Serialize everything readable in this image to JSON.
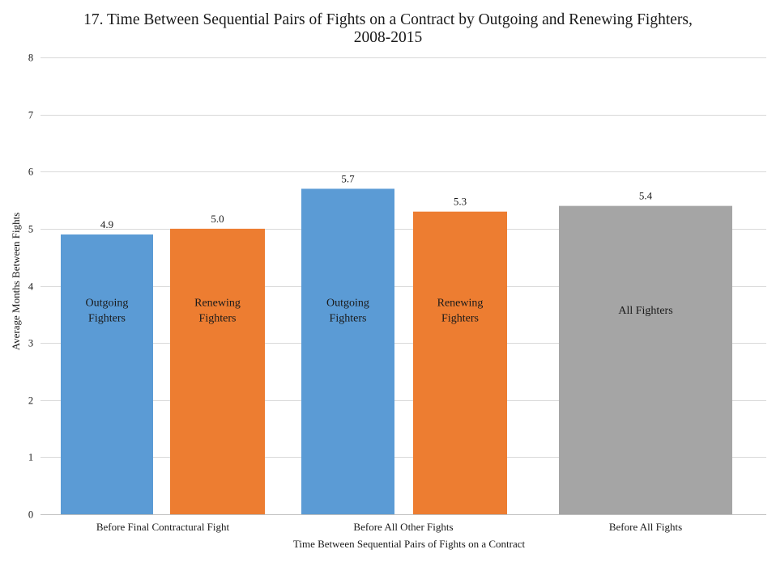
{
  "chart_data": {
    "type": "bar",
    "title_lines": [
      "17. Time Between Sequential Pairs of Fights on a Contract by Outgoing and Renewing Fighters,",
      "2008-2015"
    ],
    "xlabel": "Time Between Sequential Pairs of Fights on a Contract",
    "ylabel": "Average Months Between Fights",
    "ylim": [
      0,
      8
    ],
    "yticks": [
      "0",
      "1",
      "2",
      "3",
      "4",
      "5",
      "6",
      "7",
      "8"
    ],
    "grid": true,
    "legend": "none",
    "groups": [
      {
        "category": "Before Final Contractural Fight",
        "bars": [
          {
            "label_lines": [
              "Outgoing",
              "Fighters"
            ],
            "value": 4.9,
            "value_label": "4.9",
            "color": "#5b9bd5"
          },
          {
            "label_lines": [
              "Renewing",
              "Fighters"
            ],
            "value": 5.0,
            "value_label": "5.0",
            "color": "#ed7d31"
          }
        ]
      },
      {
        "category": "Before All Other Fights",
        "bars": [
          {
            "label_lines": [
              "Outgoing",
              "Fighters"
            ],
            "value": 5.7,
            "value_label": "5.7",
            "color": "#5b9bd5"
          },
          {
            "label_lines": [
              "Renewing",
              "Fighters"
            ],
            "value": 5.3,
            "value_label": "5.3",
            "color": "#ed7d31"
          }
        ]
      },
      {
        "category": "Before All Fights",
        "bars": [
          {
            "label_lines": [
              "All Fighters"
            ],
            "value": 5.4,
            "value_label": "5.4",
            "color": "#a5a5a5"
          }
        ]
      }
    ]
  }
}
